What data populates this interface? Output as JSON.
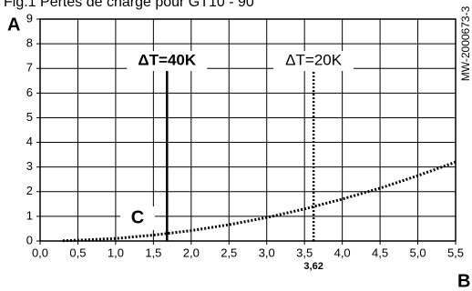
{
  "chart_data": {
    "type": "line",
    "title": "Fig.1       Pertes de charge pour GT10 - 90",
    "x": [
      0.3,
      0.5,
      1.0,
      1.5,
      2.0,
      2.5,
      3.0,
      3.5,
      4.0,
      4.5,
      5.0,
      5.5
    ],
    "series": [
      {
        "color": "#000000",
        "line_style": "dotted",
        "values": [
          0.01,
          0.03,
          0.1,
          0.24,
          0.42,
          0.66,
          0.95,
          1.3,
          1.7,
          2.14,
          2.65,
          3.2
        ]
      }
    ],
    "xlim": [
      0,
      5.5
    ],
    "xticks": [
      {
        "value": 0,
        "label": "0,0"
      },
      {
        "value": 0.5,
        "label": "0,5"
      },
      {
        "value": 1,
        "label": "1,0"
      },
      {
        "value": 1.5,
        "label": "1,5"
      },
      {
        "value": 2,
        "label": "2,0"
      },
      {
        "value": 2.5,
        "label": "2,5"
      },
      {
        "value": 3,
        "label": "3,0"
      },
      {
        "value": 3.5,
        "label": "3,5"
      },
      {
        "value": 4,
        "label": "4,0"
      },
      {
        "value": 4.5,
        "label": "4,5"
      },
      {
        "value": 5,
        "label": "5,0"
      },
      {
        "value": 5.5,
        "label": "5,5"
      }
    ],
    "ylim": [
      0,
      9
    ],
    "yticks": [
      0,
      1,
      2,
      3,
      4,
      5,
      6,
      7,
      8,
      9
    ],
    "grid": true,
    "markers": [
      {
        "label": "ΔT=40K",
        "x": 1.68,
        "line_style": "solid",
        "bold": true
      },
      {
        "label": "ΔT=20K",
        "x": 3.62,
        "x_label": "3,62",
        "line_style": "dotted",
        "bold": false
      }
    ],
    "y_axis_letter": "A",
    "x_axis_letter": "B",
    "curve_letter": "C",
    "reference": "MW-2000673-3"
  }
}
